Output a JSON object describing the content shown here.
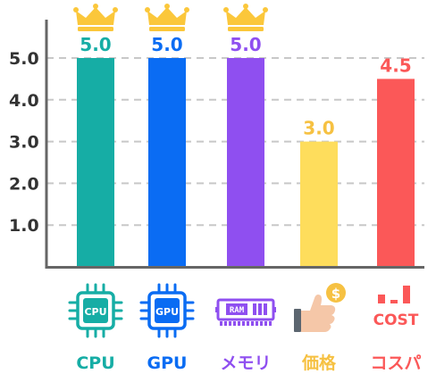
{
  "chart_data": {
    "type": "bar",
    "title": "",
    "xlabel": "",
    "ylabel": "",
    "ylim": [
      0,
      5.5
    ],
    "yticks": [
      "1.0",
      "2.0",
      "3.0",
      "4.0",
      "5.0"
    ],
    "grid": true,
    "categories": [
      "CPU",
      "GPU",
      "メモリ",
      "価格",
      "コスパ"
    ],
    "values": [
      5.0,
      5.0,
      5.0,
      3.0,
      4.5
    ],
    "value_labels": [
      "5.0",
      "5.0",
      "5.0",
      "3.0",
      "4.5"
    ],
    "crowns": [
      true,
      true,
      true,
      false,
      false
    ],
    "colors": [
      "#16ada5",
      "#0a6cf3",
      "#8f4ff0",
      "#fedd5c",
      "#fb5858"
    ],
    "icons": [
      "cpu-chip-icon",
      "gpu-chip-icon",
      "ram-module-icon",
      "price-hand-coin-icon",
      "cost-performance-icon"
    ],
    "icon_texts": {
      "cpu": "CPU",
      "gpu": "GPU",
      "ram": "RAM",
      "coin": "$",
      "cost": "COST"
    },
    "colors_meta": {
      "crown": "#fbc73b",
      "label_price": "#f6c142",
      "grid": "#c8c8c8",
      "axis": "#666666",
      "tick_text": "#333333",
      "hand_skin": "#f5c7a8",
      "hand_sleeve": "#5c6670"
    }
  }
}
